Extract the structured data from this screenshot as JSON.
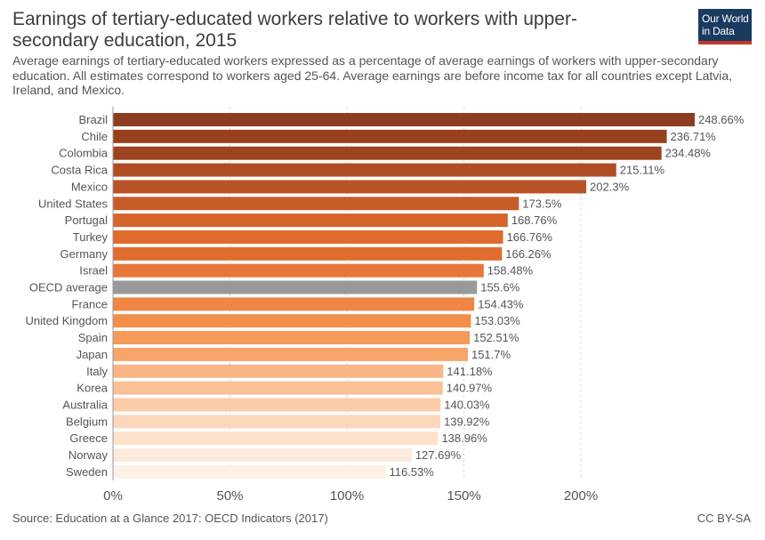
{
  "header": {
    "title": "Earnings of tertiary-educated workers relative to workers with upper-secondary education, 2015",
    "subtitle": "Average earnings of tertiary-educated workers expressed as a percentage of average earnings of workers with upper-secondary education. All estimates correspond to workers aged 25-64. Average earnings are before income tax for all countries except Latvia, Ireland, and Mexico."
  },
  "logo": {
    "line1": "Our World",
    "line2": "in Data",
    "bg_color": "#1a3a5f",
    "accent_color": "#c0392b"
  },
  "footer": {
    "source": "Source: Education at a Glance 2017: OECD Indicators (2017)",
    "license": "CC BY-SA"
  },
  "chart_data": {
    "type": "bar",
    "orientation": "horizontal",
    "title": "Earnings of tertiary-educated workers relative to workers with upper-secondary education, 2015",
    "xlabel": "",
    "ylabel": "",
    "xlim": [
      0,
      250
    ],
    "ticks": [
      0,
      50,
      100,
      150,
      200
    ],
    "tick_labels": [
      "0%",
      "50%",
      "100%",
      "150%",
      "200%"
    ],
    "value_suffix": "%",
    "grid": true,
    "categories": [
      "Brazil",
      "Chile",
      "Colombia",
      "Costa Rica",
      "Mexico",
      "United States",
      "Portugal",
      "Turkey",
      "Germany",
      "Israel",
      "OECD average",
      "France",
      "United Kingdom",
      "Spain",
      "Japan",
      "Italy",
      "Korea",
      "Australia",
      "Belgium",
      "Greece",
      "Norway",
      "Sweden"
    ],
    "values": [
      248.66,
      236.71,
      234.48,
      215.11,
      202.3,
      173.5,
      168.76,
      166.76,
      166.26,
      158.48,
      155.6,
      154.43,
      153.03,
      152.51,
      151.7,
      141.18,
      140.97,
      140.03,
      139.92,
      138.96,
      127.69,
      116.53
    ],
    "value_labels": [
      "248.66%",
      "236.71%",
      "234.48%",
      "215.11%",
      "202.3%",
      "173.5%",
      "168.76%",
      "166.76%",
      "166.26%",
      "158.48%",
      "155.6%",
      "154.43%",
      "153.03%",
      "152.51%",
      "151.7%",
      "141.18%",
      "140.97%",
      "140.03%",
      "139.92%",
      "138.96%",
      "127.69%",
      "116.53%"
    ],
    "colors": [
      "#8e3d22",
      "#97411f",
      "#9c441f",
      "#b04d24",
      "#b85427",
      "#c75c2b",
      "#d7642a",
      "#df6b2c",
      "#e06d2e",
      "#e8773a",
      "#999999",
      "#ef8743",
      "#f28f4b",
      "#f59a58",
      "#f7a568",
      "#f9b584",
      "#fac196",
      "#fbcca8",
      "#fcd7bb",
      "#fde2cd",
      "#fdeadc",
      "#fdf0e6"
    ]
  }
}
